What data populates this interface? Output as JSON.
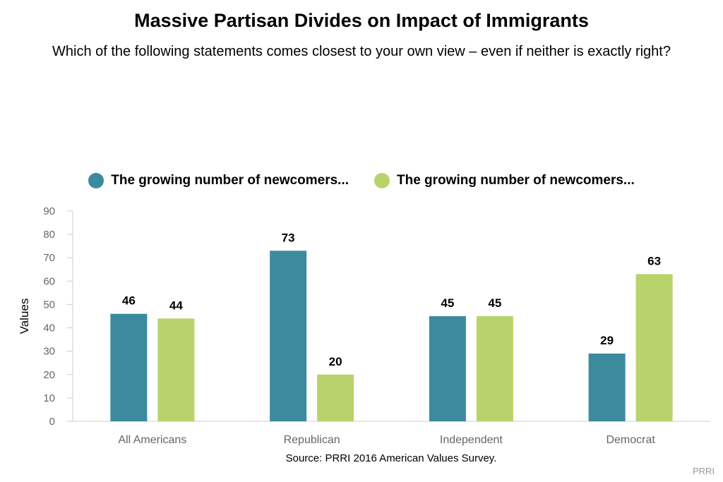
{
  "chart_data": {
    "type": "bar",
    "title": "Massive Partisan Divides on Impact of Immigrants",
    "subtitle": "Which of the following statements comes closest to your own view – even if neither is exactly right?",
    "categories": [
      "All Americans",
      "Republican",
      "Independent",
      "Democrat"
    ],
    "series": [
      {
        "name": "The growing number of newcomers...",
        "values": [
          46,
          73,
          45,
          29
        ],
        "color": "#3c8a9e"
      },
      {
        "name": "The growing number of newcomers...",
        "values": [
          44,
          20,
          45,
          63
        ],
        "color": "#b9d36c"
      }
    ],
    "xlabel": "",
    "ylabel": "Values",
    "ylim": [
      0,
      90
    ],
    "yticks": [
      0,
      10,
      20,
      30,
      40,
      50,
      60,
      70,
      80,
      90
    ],
    "legend_position": "top-center",
    "grid": false,
    "data_labels": true
  },
  "source": "Source: PRRI 2016 American Values Survey.",
  "credit": "PRRI"
}
